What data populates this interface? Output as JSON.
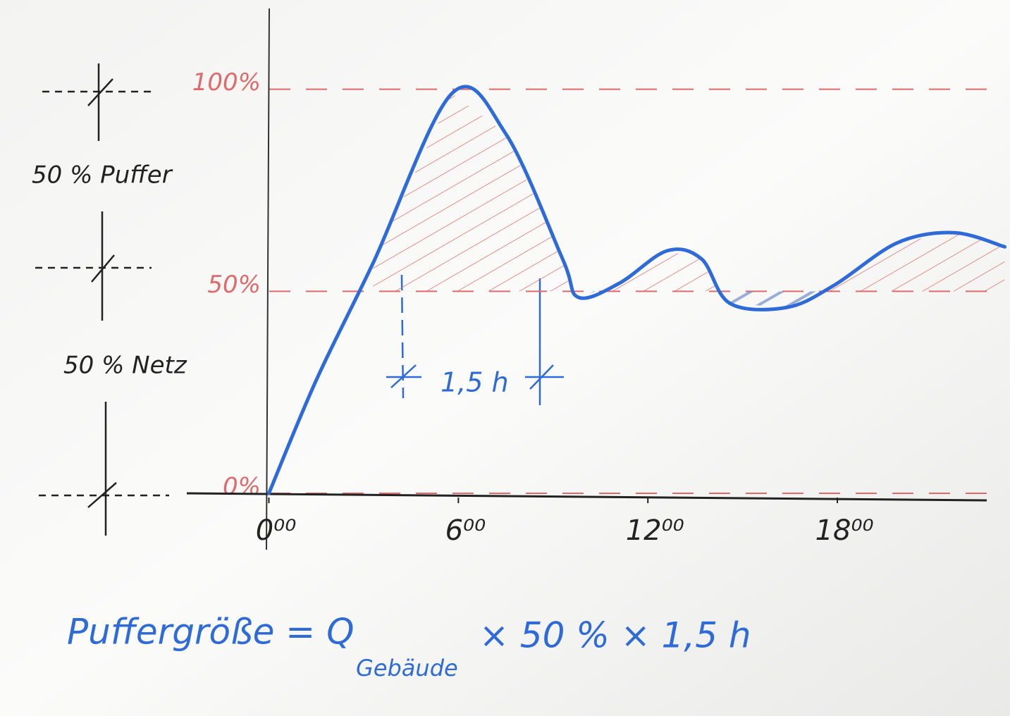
{
  "chart_data": {
    "type": "line",
    "x": [
      0,
      1.5,
      3.3,
      5.8,
      7.5,
      9.3,
      9.8,
      11.1,
      12.6,
      13.7,
      14.6,
      16.4,
      17.9,
      19.9,
      21.7,
      23.3
    ],
    "values": [
      0,
      28,
      57,
      99,
      89,
      58,
      48.5,
      52,
      60,
      58,
      47,
      46,
      51.5,
      62,
      64.5,
      61
    ],
    "color": "#2e6bd8",
    "xlim": [
      -2.6,
      23.4
    ],
    "xticks": [
      {
        "value": 0,
        "label": "0⁰⁰"
      },
      {
        "value": 6,
        "label": "6⁰⁰"
      },
      {
        "value": 12,
        "label": "12⁰⁰"
      },
      {
        "value": 18,
        "label": "18⁰⁰"
      }
    ],
    "ylim": [
      0,
      120
    ],
    "yticks": [
      {
        "value": 0,
        "label": "0%"
      },
      {
        "value": 50,
        "label": "50%"
      },
      {
        "value": 100,
        "label": "100%"
      }
    ],
    "grid": true,
    "grid_color": "#e06a6a",
    "annotations": {
      "buffer": "50 % Puffer",
      "grid_share": "50 % Netz",
      "duration": "1,5 h",
      "formula": "Puffergröße = Q",
      "formula_sub": "Gebäude",
      "formula_rest": "× 50 % × 1,5 h"
    }
  }
}
